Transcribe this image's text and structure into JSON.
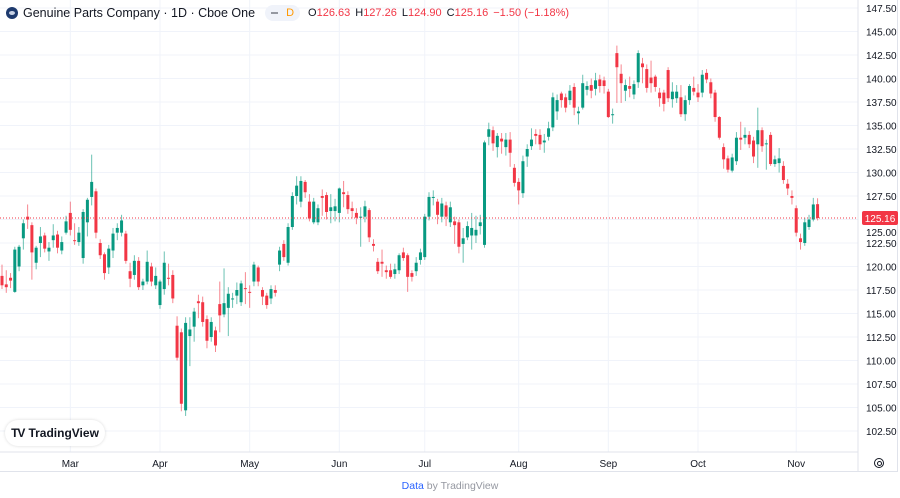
{
  "header": {
    "title": "Genuine Parts Company · 1D · Cboe One",
    "interval_badge": "D",
    "o_label": "O",
    "o": "126.63",
    "h_label": "H",
    "h": "127.26",
    "l_label": "L",
    "l": "124.90",
    "c_label": "C",
    "c": "125.16",
    "change": "−1.50 (−1.18%)"
  },
  "branding": {
    "logo_text": "TradingView"
  },
  "footer": {
    "data_link": "Data",
    "by_text": "by TradingView"
  },
  "colors": {
    "up": "#089981",
    "down": "#f23645",
    "grid": "#f0f3fa",
    "last_price": "#f23645"
  },
  "chart_data": {
    "type": "candlestick",
    "title": "Genuine Parts Company · 1D · Cboe One",
    "ylim": [
      101.5,
      148.2
    ],
    "grid": true,
    "y_ticks": [
      "147.50",
      "145.00",
      "142.50",
      "140.00",
      "137.50",
      "135.00",
      "132.50",
      "130.00",
      "127.50",
      "125.00",
      "122.50",
      "120.00",
      "117.50",
      "115.00",
      "112.50",
      "110.00",
      "107.50",
      "105.00",
      "102.50"
    ],
    "x_ticks": [
      {
        "label": "Mar",
        "index": 16
      },
      {
        "label": "Apr",
        "index": 37
      },
      {
        "label": "May",
        "index": 58
      },
      {
        "label": "Jun",
        "index": 79
      },
      {
        "label": "Jul",
        "index": 99
      },
      {
        "label": "Aug",
        "index": 121
      },
      {
        "label": "Sep",
        "index": 142
      },
      {
        "label": "Oct",
        "index": 163
      },
      {
        "label": "Nov",
        "index": 186
      }
    ],
    "last_price": "125.16",
    "ohlc_fields": [
      "open",
      "high",
      "low",
      "close"
    ],
    "candles": [
      [
        119.0,
        120.2,
        117.6,
        118.0
      ],
      [
        118.1,
        119.6,
        117.2,
        117.8
      ],
      [
        118.8,
        119.3,
        117.7,
        118.5
      ],
      [
        117.3,
        122.1,
        117.2,
        121.8
      ],
      [
        120.0,
        122.3,
        119.5,
        122.1
      ],
      [
        123.0,
        125.0,
        121.8,
        124.6
      ],
      [
        125.3,
        126.6,
        124.0,
        125.0
      ],
      [
        124.4,
        124.7,
        118.6,
        121.5
      ],
      [
        120.4,
        122.2,
        119.7,
        122.0
      ],
      [
        122.5,
        124.2,
        121.0,
        123.2
      ],
      [
        123.3,
        123.6,
        121.5,
        121.9
      ],
      [
        121.6,
        122.6,
        120.6,
        122.0
      ],
      [
        122.8,
        124.5,
        122.0,
        123.3
      ],
      [
        123.4,
        123.8,
        121.4,
        122.0
      ],
      [
        121.7,
        123.2,
        121.3,
        122.6
      ],
      [
        123.6,
        125.4,
        123.4,
        124.8
      ],
      [
        125.7,
        126.9,
        123.3,
        123.9
      ],
      [
        122.8,
        124.6,
        122.3,
        122.7
      ],
      [
        122.6,
        124.2,
        122.2,
        123.6
      ],
      [
        120.9,
        126.1,
        120.3,
        125.8
      ],
      [
        124.7,
        127.3,
        123.2,
        127.1
      ],
      [
        127.4,
        131.9,
        126.5,
        129.0
      ],
      [
        128.0,
        128.3,
        123.0,
        123.6
      ],
      [
        122.5,
        122.9,
        120.8,
        121.2
      ],
      [
        121.3,
        121.5,
        118.6,
        119.3
      ],
      [
        119.9,
        122.3,
        119.2,
        121.9
      ],
      [
        121.7,
        124.1,
        120.9,
        123.5
      ],
      [
        123.6,
        124.6,
        122.8,
        124.1
      ],
      [
        123.6,
        125.5,
        123.2,
        124.9
      ],
      [
        123.5,
        123.8,
        120.3,
        120.6
      ],
      [
        119.5,
        120.4,
        117.8,
        118.7
      ],
      [
        119.1,
        121.2,
        118.6,
        120.6
      ],
      [
        120.6,
        121.0,
        117.5,
        117.8
      ],
      [
        118.0,
        118.7,
        117.5,
        118.4
      ],
      [
        118.4,
        121.7,
        118.1,
        120.5
      ],
      [
        120.0,
        120.4,
        117.9,
        118.4
      ],
      [
        118.0,
        119.9,
        117.6,
        119.0
      ],
      [
        115.9,
        118.6,
        115.5,
        118.4
      ],
      [
        117.6,
        121.6,
        117.0,
        120.4
      ],
      [
        118.8,
        120.3,
        118.0,
        118.7
      ],
      [
        119.1,
        119.6,
        116.1,
        116.6
      ],
      [
        113.7,
        114.7,
        110.0,
        110.3
      ],
      [
        113.0,
        113.4,
        104.6,
        105.4
      ],
      [
        104.7,
        114.6,
        104.1,
        114.0
      ],
      [
        112.6,
        114.6,
        109.4,
        113.3
      ],
      [
        113.6,
        115.6,
        112.0,
        115.2
      ],
      [
        116.3,
        117.0,
        114.5,
        116.1
      ],
      [
        116.2,
        116.8,
        113.6,
        114.1
      ],
      [
        114.4,
        114.8,
        111.3,
        112.1
      ],
      [
        112.5,
        114.6,
        112.0,
        114.1
      ],
      [
        113.2,
        113.6,
        110.9,
        111.6
      ],
      [
        116.0,
        118.4,
        113.0,
        114.8
      ],
      [
        114.9,
        119.8,
        114.6,
        116.1
      ],
      [
        115.6,
        117.8,
        112.6,
        117.1
      ],
      [
        116.5,
        117.2,
        115.6,
        116.6
      ],
      [
        116.9,
        118.3,
        116.0,
        117.5
      ],
      [
        116.2,
        118.5,
        115.8,
        118.2
      ],
      [
        117.7,
        119.4,
        116.0,
        117.6
      ],
      [
        117.3,
        118.0,
        115.6,
        117.2
      ],
      [
        118.4,
        120.5,
        117.9,
        120.2
      ],
      [
        119.9,
        120.1,
        117.9,
        118.4
      ],
      [
        117.5,
        117.8,
        115.9,
        116.8
      ],
      [
        116.9,
        117.2,
        115.5,
        115.9
      ],
      [
        116.6,
        118.0,
        116.0,
        117.6
      ],
      [
        117.5,
        118.0,
        116.8,
        117.2
      ],
      [
        120.2,
        122.1,
        119.5,
        121.7
      ],
      [
        122.4,
        122.8,
        120.6,
        121.0
      ],
      [
        120.4,
        124.6,
        120.1,
        124.2
      ],
      [
        124.2,
        127.9,
        123.9,
        127.5
      ],
      [
        127.5,
        129.6,
        126.6,
        128.6
      ],
      [
        126.9,
        129.6,
        126.3,
        129.1
      ],
      [
        129.0,
        129.2,
        127.3,
        127.9
      ],
      [
        126.9,
        127.7,
        124.8,
        125.1
      ],
      [
        124.7,
        127.3,
        124.5,
        126.9
      ],
      [
        124.7,
        126.6,
        124.4,
        126.2
      ],
      [
        127.5,
        128.2,
        125.4,
        127.3
      ],
      [
        127.6,
        127.9,
        125.0,
        125.8
      ],
      [
        125.9,
        127.7,
        124.6,
        126.3
      ],
      [
        125.9,
        127.2,
        124.8,
        126.4
      ],
      [
        125.7,
        128.4,
        124.7,
        128.3
      ],
      [
        127.9,
        129.1,
        126.3,
        127.7
      ],
      [
        127.6,
        128.0,
        125.6,
        126.1
      ],
      [
        126.2,
        126.9,
        125.1,
        125.9
      ],
      [
        125.7,
        126.2,
        124.5,
        125.2
      ],
      [
        125.2,
        126.3,
        122.1,
        125.3
      ],
      [
        125.3,
        127.0,
        124.7,
        126.4
      ],
      [
        126.0,
        126.2,
        122.6,
        123.1
      ],
      [
        122.4,
        122.9,
        121.6,
        122.2
      ],
      [
        120.5,
        120.9,
        119.2,
        119.5
      ],
      [
        120.5,
        121.8,
        118.9,
        120.3
      ],
      [
        119.6,
        120.1,
        118.7,
        119.4
      ],
      [
        119.6,
        120.3,
        118.7,
        118.9
      ],
      [
        119.2,
        120.3,
        118.7,
        119.7
      ],
      [
        119.6,
        121.4,
        119.2,
        121.2
      ],
      [
        121.5,
        122.0,
        120.6,
        120.9
      ],
      [
        121.2,
        121.4,
        117.3,
        118.9
      ],
      [
        119.3,
        119.6,
        118.4,
        118.9
      ],
      [
        119.5,
        121.0,
        119.0,
        120.4
      ],
      [
        120.7,
        121.9,
        120.2,
        121.5
      ],
      [
        121.0,
        125.6,
        120.7,
        125.3
      ],
      [
        125.3,
        127.9,
        124.9,
        127.4
      ],
      [
        127.3,
        128.1,
        126.5,
        127.4
      ],
      [
        126.9,
        127.2,
        124.5,
        125.5
      ],
      [
        125.3,
        127.3,
        124.7,
        126.7
      ],
      [
        126.5,
        126.9,
        124.3,
        125.3
      ],
      [
        124.7,
        126.9,
        124.2,
        126.3
      ],
      [
        124.8,
        125.3,
        122.4,
        124.4
      ],
      [
        124.7,
        125.0,
        121.4,
        122.1
      ],
      [
        122.4,
        124.1,
        120.4,
        123.0
      ],
      [
        123.1,
        124.8,
        122.8,
        124.3
      ],
      [
        123.3,
        125.7,
        121.8,
        124.1
      ],
      [
        123.3,
        125.4,
        122.5,
        123.9
      ],
      [
        124.3,
        125.5,
        123.4,
        124.7
      ],
      [
        122.3,
        133.4,
        122.0,
        133.2
      ],
      [
        133.8,
        135.3,
        132.9,
        134.6
      ],
      [
        134.5,
        134.9,
        132.3,
        133.1
      ],
      [
        132.7,
        134.2,
        131.6,
        133.9
      ],
      [
        133.6,
        134.2,
        132.0,
        133.3
      ],
      [
        132.7,
        134.2,
        131.8,
        133.5
      ],
      [
        133.5,
        134.3,
        130.6,
        132.1
      ],
      [
        130.5,
        130.9,
        128.5,
        128.9
      ],
      [
        129.0,
        129.4,
        126.6,
        128.1
      ],
      [
        127.8,
        131.8,
        127.3,
        131.2
      ],
      [
        131.7,
        133.0,
        130.6,
        132.5
      ],
      [
        132.8,
        134.7,
        132.4,
        133.5
      ],
      [
        134.1,
        134.6,
        133.0,
        133.9
      ],
      [
        134.0,
        134.6,
        132.4,
        133.0
      ],
      [
        133.2,
        134.1,
        132.1,
        133.4
      ],
      [
        133.8,
        135.4,
        133.4,
        134.7
      ],
      [
        134.8,
        138.5,
        134.4,
        138.0
      ],
      [
        136.5,
        138.3,
        135.6,
        137.7
      ],
      [
        138.4,
        138.6,
        136.9,
        137.7
      ],
      [
        138.0,
        138.4,
        136.4,
        136.9
      ],
      [
        137.7,
        139.3,
        137.2,
        138.7
      ],
      [
        139.1,
        139.5,
        136.1,
        136.9
      ],
      [
        136.3,
        137.0,
        135.1,
        136.5
      ],
      [
        136.9,
        140.4,
        136.7,
        139.5
      ],
      [
        138.8,
        139.7,
        138.2,
        139.2
      ],
      [
        139.3,
        140.0,
        137.9,
        138.7
      ],
      [
        138.9,
        140.6,
        138.2,
        139.8
      ],
      [
        139.9,
        140.4,
        138.5,
        139.2
      ],
      [
        139.8,
        140.2,
        138.4,
        139.2
      ],
      [
        138.6,
        138.9,
        135.8,
        135.9
      ],
      [
        136.1,
        136.8,
        135.2,
        136.2
      ],
      [
        142.7,
        143.5,
        137.4,
        141.2
      ],
      [
        140.5,
        141.5,
        137.4,
        139.5
      ],
      [
        138.7,
        139.9,
        137.6,
        139.3
      ],
      [
        139.2,
        140.2,
        138.0,
        138.9
      ],
      [
        138.3,
        139.8,
        137.8,
        139.4
      ],
      [
        139.6,
        143.0,
        139.0,
        142.7
      ],
      [
        141.6,
        142.2,
        139.5,
        141.2
      ],
      [
        141.0,
        141.5,
        138.5,
        139.0
      ],
      [
        140.1,
        141.9,
        138.5,
        139.5
      ],
      [
        140.2,
        140.4,
        138.6,
        139.1
      ],
      [
        138.5,
        139.0,
        137.0,
        137.9
      ],
      [
        138.5,
        138.8,
        136.5,
        137.3
      ],
      [
        140.9,
        141.2,
        137.5,
        137.9
      ],
      [
        137.8,
        139.6,
        136.9,
        138.6
      ],
      [
        137.9,
        139.3,
        137.4,
        138.6
      ],
      [
        138.0,
        139.3,
        135.9,
        136.2
      ],
      [
        136.2,
        138.2,
        135.5,
        137.7
      ],
      [
        137.7,
        139.4,
        137.2,
        139.2
      ],
      [
        139.0,
        140.2,
        138.2,
        138.6
      ],
      [
        138.5,
        139.4,
        137.5,
        138.0
      ],
      [
        138.5,
        140.9,
        138.0,
        140.4
      ],
      [
        140.6,
        141.0,
        139.5,
        139.9
      ],
      [
        139.6,
        140.0,
        137.9,
        138.4
      ],
      [
        138.5,
        138.8,
        135.4,
        135.9
      ],
      [
        135.9,
        136.0,
        133.5,
        133.7
      ],
      [
        132.7,
        133.1,
        130.4,
        131.4
      ],
      [
        131.5,
        131.8,
        130.0,
        130.3
      ],
      [
        130.2,
        132.0,
        130.0,
        131.6
      ],
      [
        131.2,
        134.3,
        130.8,
        133.7
      ],
      [
        133.7,
        135.4,
        132.4,
        133.5
      ],
      [
        133.7,
        134.8,
        133.0,
        134.0
      ],
      [
        134.0,
        134.4,
        132.6,
        133.0
      ],
      [
        133.4,
        133.8,
        131.0,
        131.7
      ],
      [
        133.0,
        136.9,
        130.5,
        134.5
      ],
      [
        134.5,
        134.8,
        132.2,
        132.8
      ],
      [
        133.0,
        133.5,
        130.3,
        133.1
      ],
      [
        134.0,
        134.3,
        130.7,
        130.9
      ],
      [
        130.9,
        131.8,
        130.6,
        131.4
      ],
      [
        131.0,
        132.6,
        130.0,
        131.5
      ],
      [
        130.7,
        131.2,
        128.8,
        129.2
      ],
      [
        128.8,
        129.3,
        127.6,
        128.3
      ],
      [
        127.5,
        128.1,
        126.6,
        127.3
      ],
      [
        126.2,
        126.5,
        123.2,
        123.6
      ],
      [
        123.0,
        123.5,
        121.8,
        122.6
      ],
      [
        122.5,
        125.2,
        122.2,
        124.7
      ],
      [
        124.2,
        125.5,
        123.9,
        125.0
      ],
      [
        125.0,
        127.3,
        124.8,
        126.6
      ],
      [
        126.63,
        127.26,
        124.9,
        125.16
      ]
    ]
  }
}
